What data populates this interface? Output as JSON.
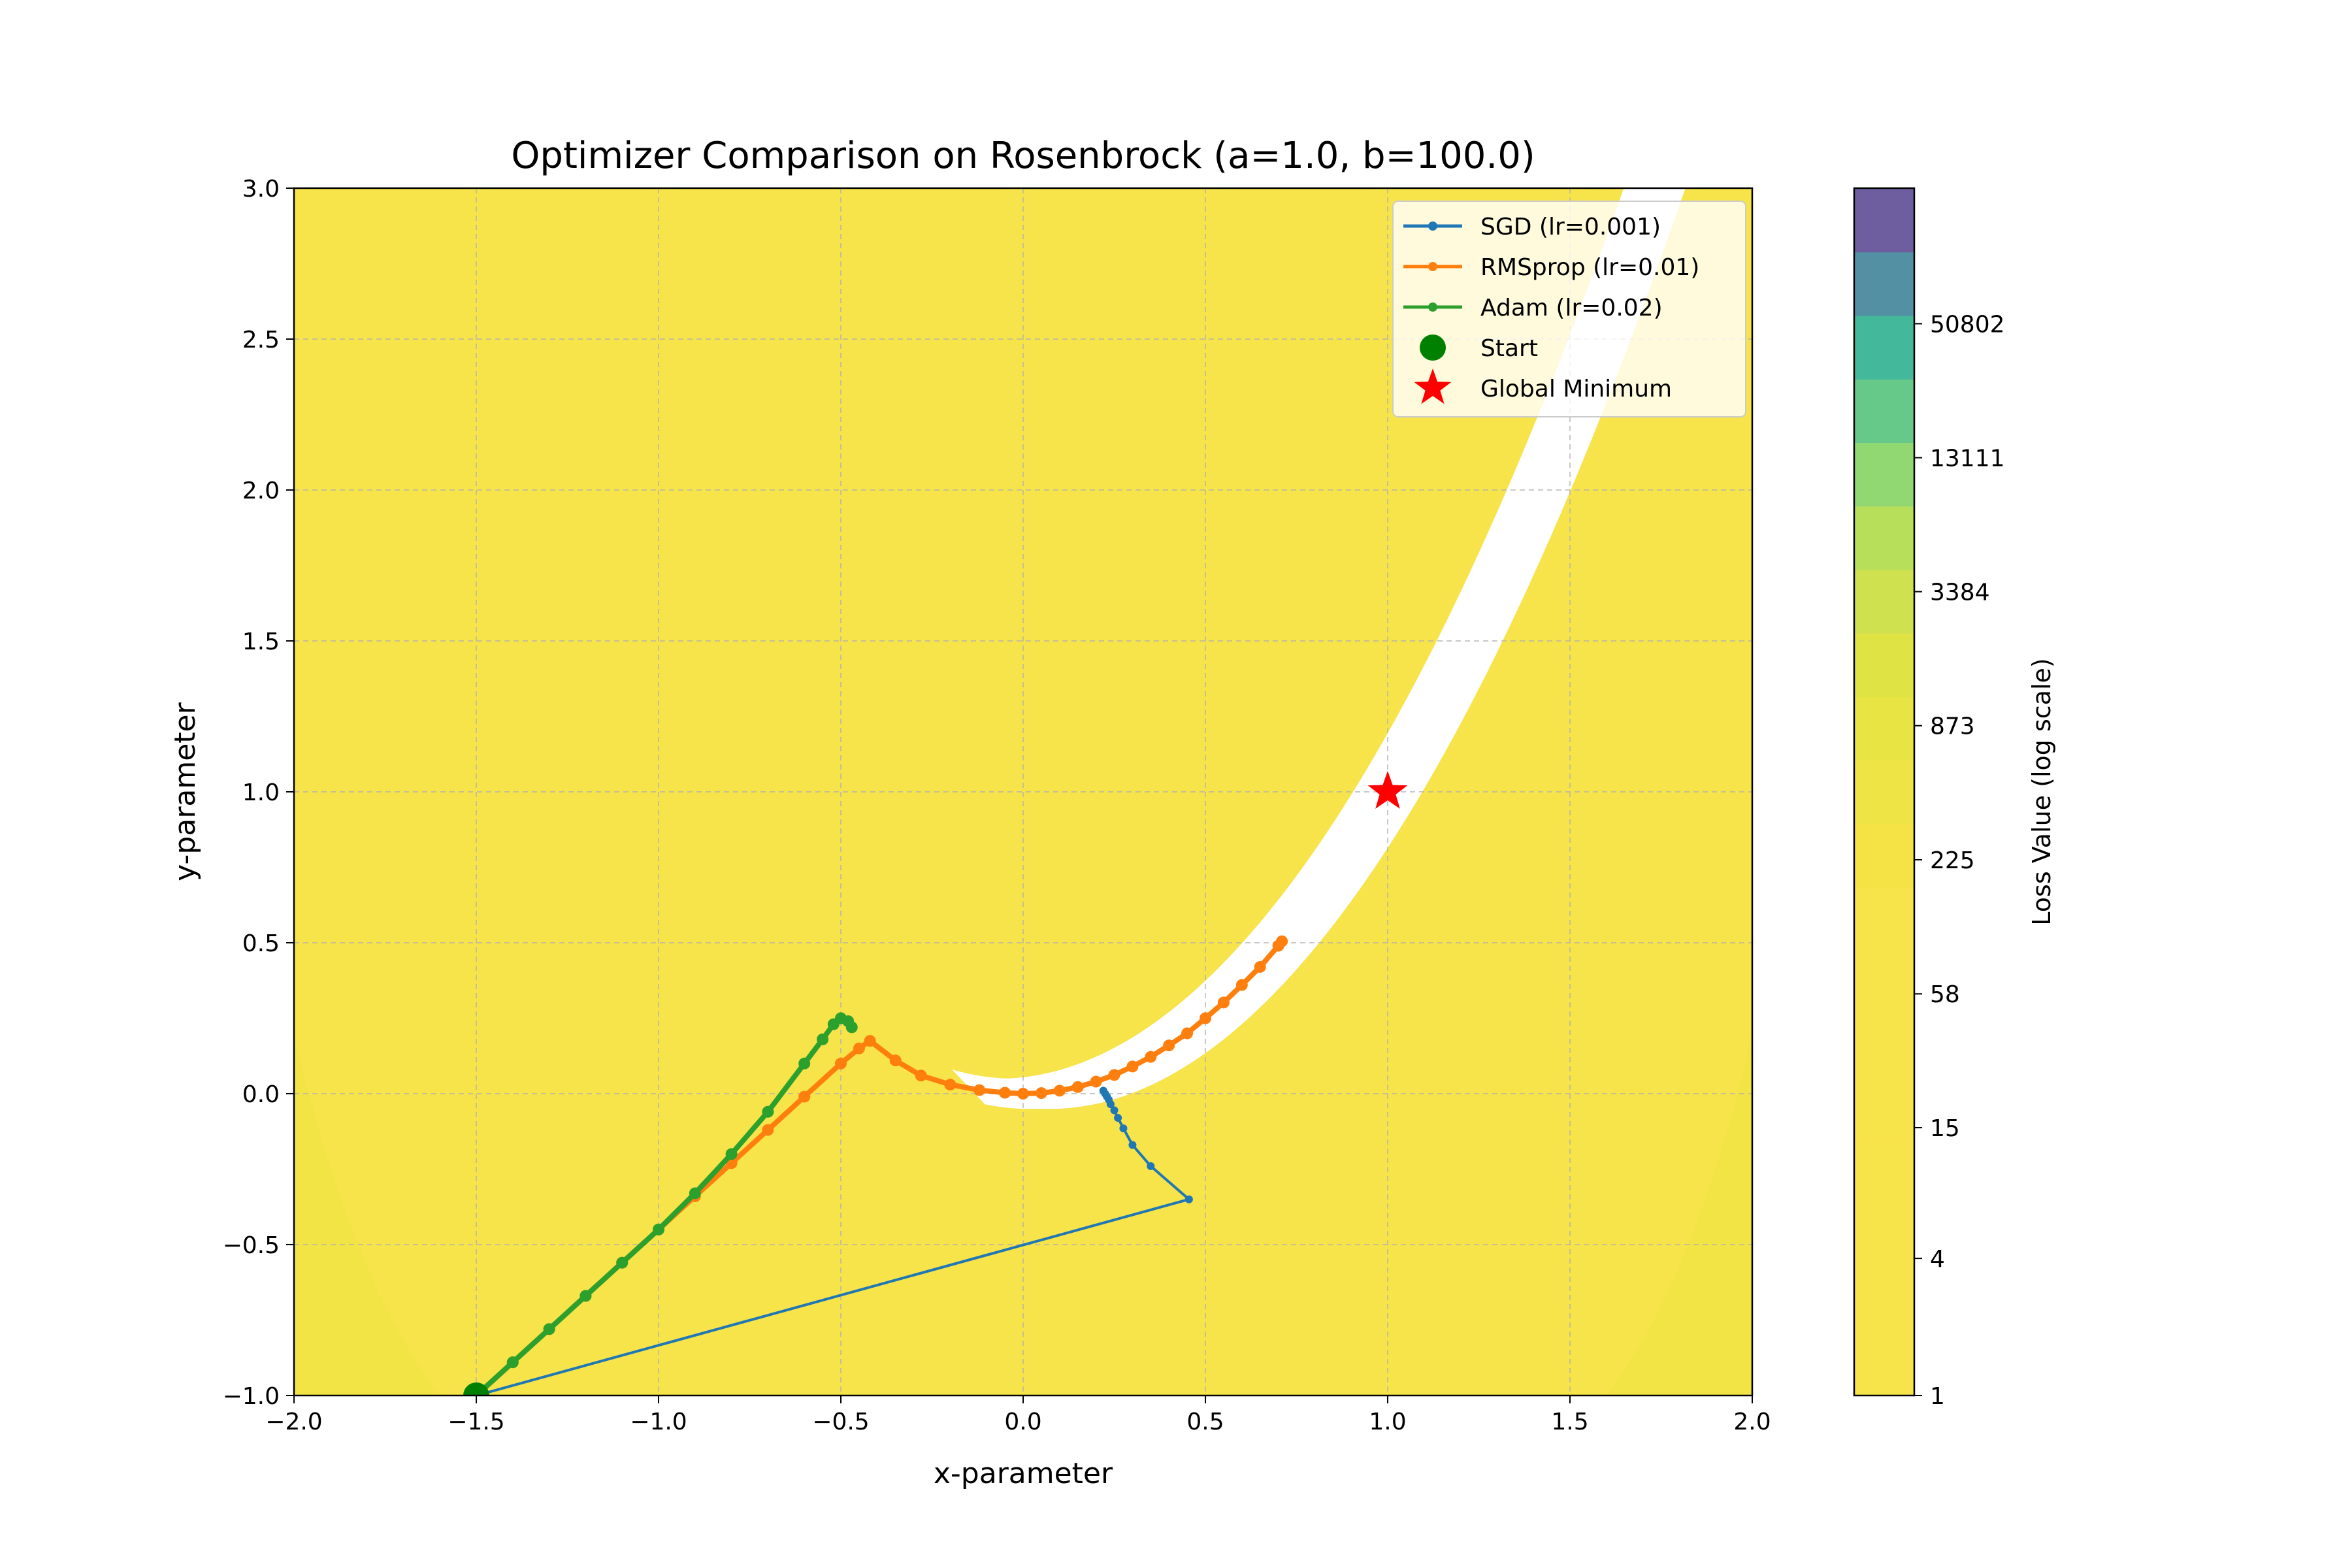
{
  "chart_data": {
    "type": "line",
    "title": "Optimizer Comparison on Rosenbrock (a=1.0, b=100.0)",
    "xlabel": "x-parameter",
    "ylabel": "y-parameter",
    "xlim": [
      -2.0,
      2.0
    ],
    "ylim": [
      -1.0,
      3.0
    ],
    "xticks": [
      -2.0,
      -1.5,
      -1.0,
      -0.5,
      0.0,
      0.5,
      1.0,
      1.5,
      2.0
    ],
    "yticks": [
      -1.0,
      -0.5,
      0.0,
      0.5,
      1.0,
      1.5,
      2.0,
      2.5,
      3.0
    ],
    "xtick_labels": [
      "−2.0",
      "−1.5",
      "−1.0",
      "−0.5",
      "0.0",
      "0.5",
      "1.0",
      "1.5",
      "2.0"
    ],
    "ytick_labels": [
      "−1.0",
      "−0.5",
      "0.0",
      "0.5",
      "1.0",
      "1.5",
      "2.0",
      "2.5",
      "3.0"
    ],
    "grid": true,
    "grid_style": "dashed",
    "legend_position": "top-right",
    "background": "filled contour of Rosenbrock loss, log color scale",
    "series": [
      {
        "name": "SGD (lr=0.001)",
        "color": "#1f77b4",
        "x": [
          -1.5,
          0.455,
          0.35,
          0.3,
          0.275,
          0.26,
          0.25,
          0.24,
          0.235,
          0.23,
          0.225,
          0.22
        ],
        "y": [
          -1.0,
          -0.35,
          -0.24,
          -0.17,
          -0.115,
          -0.08,
          -0.055,
          -0.035,
          -0.02,
          -0.01,
          0.0,
          0.01
        ]
      },
      {
        "name": "RMSprop (lr=0.01)",
        "color": "#ff7f0e",
        "x": [
          -1.5,
          -1.4,
          -1.3,
          -1.2,
          -1.1,
          -1.0,
          -0.9,
          -0.8,
          -0.7,
          -0.6,
          -0.5,
          -0.45,
          -0.42,
          -0.35,
          -0.28,
          -0.2,
          -0.12,
          -0.05,
          0.0,
          0.05,
          0.1,
          0.15,
          0.2,
          0.25,
          0.3,
          0.35,
          0.4,
          0.45,
          0.5,
          0.55,
          0.6,
          0.65,
          0.7,
          0.71
        ],
        "y": [
          -1.0,
          -0.89,
          -0.78,
          -0.67,
          -0.56,
          -0.45,
          -0.34,
          -0.23,
          -0.12,
          -0.01,
          0.1,
          0.15,
          0.175,
          0.11,
          0.06,
          0.03,
          0.012,
          0.003,
          0.0,
          0.002,
          0.01,
          0.022,
          0.04,
          0.062,
          0.09,
          0.122,
          0.16,
          0.2,
          0.25,
          0.302,
          0.36,
          0.42,
          0.49,
          0.505
        ]
      },
      {
        "name": "Adam (lr=0.02)",
        "color": "#2ca02c",
        "x": [
          -1.5,
          -1.4,
          -1.3,
          -1.2,
          -1.1,
          -1.0,
          -0.9,
          -0.8,
          -0.7,
          -0.6,
          -0.55,
          -0.52,
          -0.5,
          -0.48,
          -0.47
        ],
        "y": [
          -1.0,
          -0.89,
          -0.78,
          -0.67,
          -0.56,
          -0.45,
          -0.33,
          -0.2,
          -0.06,
          0.1,
          0.18,
          0.23,
          0.25,
          0.24,
          0.22
        ]
      }
    ],
    "markers": [
      {
        "name": "Start",
        "type": "circle",
        "color": "#008000",
        "x": -1.5,
        "y": -1.0
      },
      {
        "name": "Global Minimum",
        "type": "star",
        "color": "#ff0000",
        "x": 1.0,
        "y": 1.0
      }
    ],
    "colorbar": {
      "label": "Loss Value (log scale)",
      "scale": "log",
      "range": [
        1,
        200000
      ],
      "ticks": [
        1,
        4,
        15,
        58,
        225,
        873,
        3384,
        13111,
        50802
      ],
      "tick_labels": [
        "1",
        "4",
        "15",
        "58",
        "225",
        "873",
        "3384",
        "13111",
        "50802"
      ],
      "colors": [
        "#f7e34a",
        "#f7e34a",
        "#f7e34a",
        "#f7e34a",
        "#f7e34a",
        "#f7e34a",
        "#f7e34a",
        "#f7e34a",
        "#f5e345",
        "#eee445",
        "#e7e443",
        "#dfe343",
        "#cfe14f",
        "#b8df5a",
        "#92d872",
        "#66c98a",
        "#44b89a",
        "#5490a3",
        "#6e5d9f"
      ]
    }
  }
}
